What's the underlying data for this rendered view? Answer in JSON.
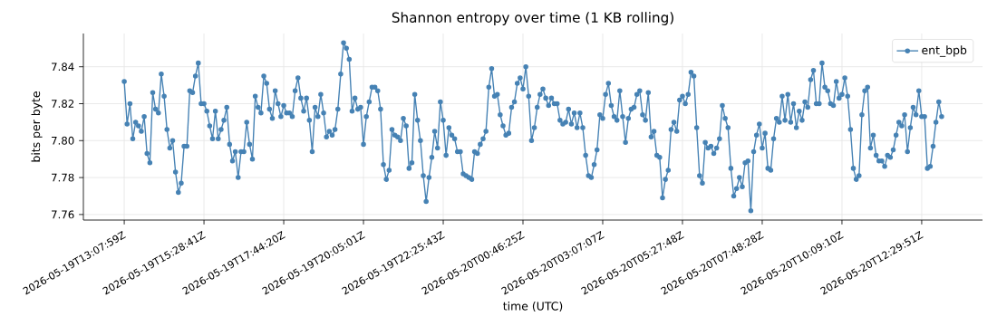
{
  "chart_data": {
    "type": "line",
    "title": "Shannon entropy over time (1 KB rolling)",
    "xlabel": "time (UTC)",
    "ylabel": "bits per byte",
    "categories": [
      "2026-05-19T13:07:59Z",
      null,
      null,
      null,
      null,
      null,
      null,
      null,
      null,
      null,
      null,
      null,
      null,
      null,
      null,
      null,
      null,
      null,
      null,
      null,
      null,
      null,
      null,
      null,
      null,
      null,
      null,
      null,
      "2026-05-19T15:28:41Z",
      null,
      null,
      null,
      null,
      null,
      null,
      null,
      null,
      null,
      null,
      null,
      null,
      null,
      null,
      null,
      null,
      null,
      null,
      null,
      null,
      null,
      null,
      null,
      null,
      null,
      null,
      null,
      "2026-05-19T17:44:20Z",
      null,
      null,
      null,
      null,
      null,
      null,
      null,
      null,
      null,
      null,
      null,
      null,
      null,
      null,
      null,
      null,
      null,
      null,
      null,
      null,
      null,
      null,
      null,
      null,
      null,
      null,
      null,
      "2026-05-19T20:05:01Z",
      null,
      null,
      null,
      null,
      null,
      null,
      null,
      null,
      null,
      null,
      null,
      null,
      null,
      null,
      null,
      null,
      null,
      null,
      null,
      null,
      null,
      null,
      null,
      null,
      null,
      null,
      null,
      "2026-05-19T22:25:43Z",
      null,
      null,
      null,
      null,
      null,
      null,
      null,
      null,
      null,
      null,
      null,
      null,
      null,
      null,
      null,
      null,
      null,
      null,
      null,
      null,
      null,
      null,
      null,
      null,
      null,
      null,
      null,
      "2026-05-20T00:46:25Z",
      null,
      null,
      null,
      null,
      null,
      null,
      null,
      null,
      null,
      null,
      null,
      null,
      null,
      null,
      null,
      null,
      null,
      null,
      null,
      null,
      null,
      null,
      null,
      null,
      null,
      null,
      null,
      "2026-05-20T03:07:07Z",
      null,
      null,
      null,
      null,
      null,
      null,
      null,
      null,
      null,
      null,
      null,
      null,
      null,
      null,
      null,
      null,
      null,
      null,
      null,
      null,
      null,
      null,
      null,
      null,
      null,
      null,
      null,
      "2026-05-20T05:27:48Z",
      null,
      null,
      null,
      null,
      null,
      null,
      null,
      null,
      null,
      null,
      null,
      null,
      null,
      null,
      null,
      null,
      null,
      null,
      null,
      null,
      null,
      null,
      null,
      null,
      null,
      null,
      null,
      "2026-05-20T07:48:28Z",
      null,
      null,
      null,
      null,
      null,
      null,
      null,
      null,
      null,
      null,
      null,
      null,
      null,
      null,
      null,
      null,
      null,
      null,
      null,
      null,
      null,
      null,
      null,
      null,
      null,
      null,
      null,
      "2026-05-20T10:09:10Z",
      null,
      null,
      null,
      null,
      null,
      null,
      null,
      null,
      null,
      null,
      null,
      null,
      null,
      null,
      null,
      null,
      null,
      null,
      null,
      null,
      null,
      null,
      null,
      null,
      null,
      null,
      null,
      "2026-05-20T12:29:51Z",
      null,
      null,
      null,
      null,
      null,
      null,
      null
    ],
    "series": [
      {
        "name": "ent_bpb",
        "color": "#4682b4",
        "values": [
          7.832,
          7.809,
          7.82,
          7.801,
          7.81,
          7.808,
          7.805,
          7.813,
          7.793,
          7.788,
          7.826,
          7.817,
          7.815,
          7.836,
          7.824,
          7.806,
          7.796,
          7.8,
          7.783,
          7.772,
          7.777,
          7.797,
          7.797,
          7.827,
          7.826,
          7.835,
          7.842,
          7.82,
          7.82,
          7.816,
          7.808,
          7.801,
          7.816,
          7.801,
          7.806,
          7.811,
          7.818,
          7.798,
          7.789,
          7.794,
          7.78,
          7.794,
          7.794,
          7.81,
          7.798,
          7.79,
          7.824,
          7.818,
          7.815,
          7.835,
          7.831,
          7.817,
          7.812,
          7.827,
          7.82,
          7.813,
          7.819,
          7.815,
          7.815,
          7.813,
          7.827,
          7.834,
          7.823,
          7.816,
          7.823,
          7.811,
          7.794,
          7.818,
          7.813,
          7.825,
          7.815,
          7.802,
          7.805,
          7.803,
          7.806,
          7.817,
          7.836,
          7.853,
          7.85,
          7.844,
          7.816,
          7.823,
          7.817,
          7.818,
          7.798,
          7.813,
          7.821,
          7.829,
          7.829,
          7.827,
          7.817,
          7.787,
          7.779,
          7.784,
          7.806,
          7.803,
          7.802,
          7.8,
          7.812,
          7.808,
          7.785,
          7.788,
          7.825,
          7.811,
          7.8,
          7.781,
          7.767,
          7.78,
          7.791,
          7.805,
          7.796,
          7.821,
          7.811,
          7.792,
          7.807,
          7.803,
          7.801,
          7.794,
          7.794,
          7.782,
          7.781,
          7.78,
          7.779,
          7.794,
          7.793,
          7.798,
          7.801,
          7.805,
          7.829,
          7.839,
          7.824,
          7.825,
          7.814,
          7.808,
          7.803,
          7.804,
          7.818,
          7.821,
          7.831,
          7.834,
          7.828,
          7.84,
          7.824,
          7.8,
          7.807,
          7.818,
          7.825,
          7.828,
          7.823,
          7.819,
          7.823,
          7.82,
          7.82,
          7.811,
          7.809,
          7.81,
          7.817,
          7.809,
          7.815,
          7.807,
          7.815,
          7.807,
          7.792,
          7.781,
          7.78,
          7.787,
          7.795,
          7.814,
          7.812,
          7.825,
          7.831,
          7.819,
          7.813,
          7.811,
          7.827,
          7.813,
          7.799,
          7.812,
          7.817,
          7.818,
          7.825,
          7.827,
          7.814,
          7.811,
          7.826,
          7.802,
          7.805,
          7.792,
          7.791,
          7.769,
          7.779,
          7.784,
          7.806,
          7.81,
          7.805,
          7.822,
          7.824,
          7.82,
          7.825,
          7.837,
          7.835,
          7.807,
          7.781,
          7.777,
          7.799,
          7.796,
          7.797,
          7.793,
          7.796,
          7.801,
          7.819,
          7.812,
          7.807,
          7.785,
          7.77,
          7.774,
          7.78,
          7.775,
          7.788,
          7.789,
          7.762,
          7.794,
          7.803,
          7.809,
          7.796,
          7.804,
          7.785,
          7.784,
          7.801,
          7.812,
          7.81,
          7.824,
          7.811,
          7.825,
          7.81,
          7.82,
          7.807,
          7.816,
          7.811,
          7.821,
          7.818,
          7.833,
          7.838,
          7.82,
          7.82,
          7.842,
          7.829,
          7.827,
          7.82,
          7.819,
          7.832,
          7.823,
          7.825,
          7.834,
          7.824,
          7.806,
          7.785,
          7.779,
          7.781,
          7.814,
          7.827,
          7.829,
          7.796,
          7.803,
          7.792,
          7.789,
          7.789,
          7.786,
          7.792,
          7.791,
          7.795,
          7.803,
          7.81,
          7.808,
          7.814,
          7.794,
          7.807,
          7.818,
          7.814,
          7.827,
          7.813,
          7.813,
          7.785,
          7.786,
          7.797,
          7.81,
          7.821,
          7.813
        ]
      }
    ],
    "ylim": [
      7.757,
      7.858
    ],
    "yticks": [
      7.76,
      7.78,
      {
        "value": 7.8,
        "label": "7.80"
      },
      7.82,
      7.84
    ],
    "grid": true,
    "legend": "top right",
    "marker": "circle",
    "line_style": "solid"
  }
}
